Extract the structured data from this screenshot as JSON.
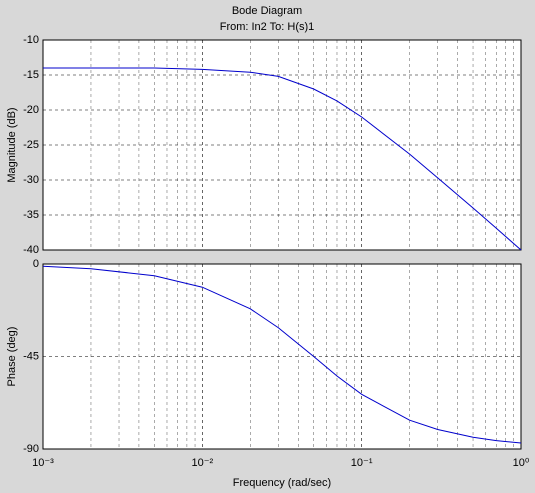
{
  "chart_data": [
    {
      "type": "line",
      "title": "Bode Diagram",
      "subtitle": "From: In2  To: H(s)1",
      "ylabel": "Magnitude (dB)",
      "x": [
        0.001,
        0.002,
        0.005,
        0.01,
        0.02,
        0.03,
        0.05,
        0.07,
        0.1,
        0.2,
        0.3,
        0.5,
        0.7,
        1
      ],
      "values": [
        -14.0,
        -14.0,
        -14.0,
        -14.2,
        -14.6,
        -15.2,
        -17.0,
        -18.7,
        -21.0,
        -26.3,
        -29.7,
        -34.0,
        -36.9,
        -40.0
      ],
      "color": "#0000cc",
      "xscale": "log",
      "xlim": [
        0.001,
        1
      ],
      "xticks": [
        0.001,
        0.01,
        0.1,
        1
      ],
      "ylim": [
        -40,
        -10
      ],
      "yticks": [
        -40,
        -35,
        -30,
        -25,
        -20,
        -15,
        -10
      ],
      "grid": true,
      "minor_grid": true
    },
    {
      "type": "line",
      "ylabel": "Phase (deg)",
      "xlabel": "Frequency  (rad/sec)",
      "x": [
        0.001,
        0.002,
        0.005,
        0.01,
        0.02,
        0.03,
        0.05,
        0.07,
        0.1,
        0.2,
        0.3,
        0.5,
        0.7,
        1
      ],
      "values": [
        -1.1,
        -2.3,
        -5.7,
        -11.3,
        -21.8,
        -31.0,
        -45,
        -54.5,
        -63.4,
        -76.0,
        -80.5,
        -84.3,
        -85.9,
        -87.1
      ],
      "color": "#0000cc",
      "xscale": "log",
      "xlim": [
        0.001,
        1
      ],
      "xticks": [
        {
          "value": 0.001,
          "label": "10⁻³"
        },
        {
          "value": 0.01,
          "label": "10⁻²"
        },
        {
          "value": 0.1,
          "label": "10⁻¹"
        },
        {
          "value": 1,
          "label": "10⁰"
        }
      ],
      "ylim": [
        -90,
        0
      ],
      "yticks": [
        -90,
        -45,
        0
      ],
      "grid": true,
      "minor_grid": true
    }
  ]
}
